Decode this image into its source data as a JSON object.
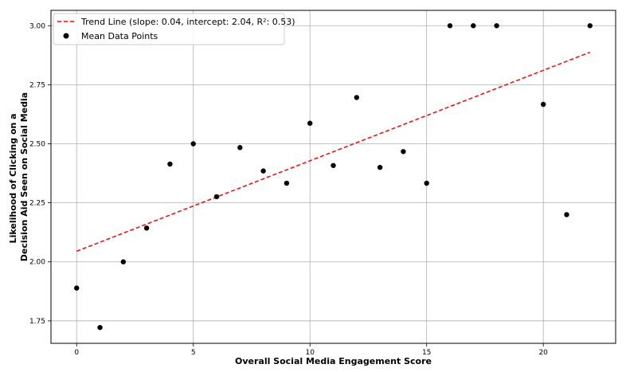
{
  "chart_data": {
    "type": "scatter",
    "title": "",
    "xlabel": "Overall Social Media Engagement Score",
    "ylabel_lines": [
      "Likelihood of Clicking on a",
      "Decision Aid Seen on Social Media"
    ],
    "xlim": [
      -1.1,
      23.1
    ],
    "ylim": [
      1.655,
      3.065
    ],
    "xticks": [
      0,
      5,
      10,
      15,
      20
    ],
    "xtick_labels": [
      "0",
      "5",
      "10",
      "15",
      "20"
    ],
    "yticks": [
      1.75,
      2.0,
      2.25,
      2.5,
      2.75,
      3.0
    ],
    "ytick_labels": [
      "1.75",
      "2.00",
      "2.25",
      "2.50",
      "2.75",
      "3.00"
    ],
    "grid": true,
    "legend_position": "top-left",
    "series": [
      {
        "name": "Mean Data Points",
        "kind": "scatter",
        "color": "#000000",
        "points": [
          [
            0,
            1.889
          ],
          [
            1,
            1.722
          ],
          [
            2,
            2.0
          ],
          [
            3,
            2.143
          ],
          [
            4,
            2.414
          ],
          [
            5,
            2.5
          ],
          [
            6,
            2.276
          ],
          [
            7,
            2.484
          ],
          [
            8,
            2.385
          ],
          [
            9,
            2.333
          ],
          [
            10,
            2.587
          ],
          [
            11,
            2.408
          ],
          [
            12,
            2.696
          ],
          [
            13,
            2.4
          ],
          [
            14,
            2.467
          ],
          [
            15,
            2.333
          ],
          [
            16,
            3.0
          ],
          [
            17,
            3.0
          ],
          [
            18,
            3.0
          ],
          [
            20,
            2.667
          ],
          [
            21,
            2.2
          ],
          [
            22,
            3.0
          ]
        ]
      },
      {
        "name": "Trend Line (slope: 0.04, intercept: 2.04, R²: 0.53)",
        "kind": "line",
        "style": "dashed",
        "color": "#ff0000",
        "x_range": [
          0,
          22
        ],
        "slope": 0.0383,
        "intercept": 2.045
      }
    ]
  }
}
